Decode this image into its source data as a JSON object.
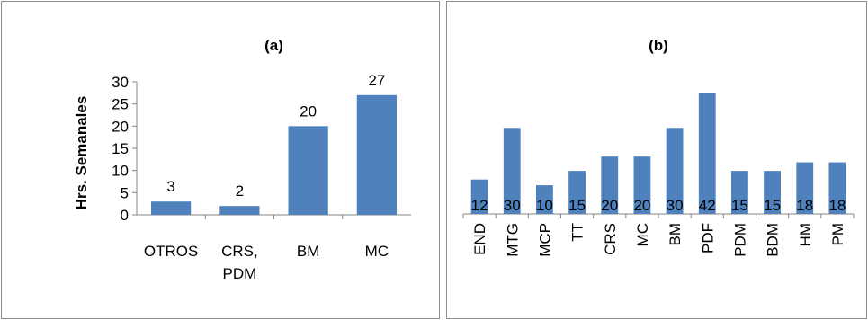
{
  "chart_data": [
    {
      "type": "bar",
      "title": "(a)",
      "ylabel": "Hrs. Semanales",
      "xlabel": "",
      "categories": [
        [
          "OTROS"
        ],
        [
          "CRS,",
          "PDM"
        ],
        [
          "BM"
        ],
        [
          "MC"
        ]
      ],
      "values": [
        3,
        2,
        20,
        27
      ],
      "data_labels": [
        "3",
        "2",
        "20",
        "27"
      ],
      "ylim": [
        0,
        30
      ],
      "yticks": [
        "0",
        "5",
        "10",
        "15",
        "20",
        "25",
        "30"
      ],
      "color": "#4f81bd",
      "grid": false,
      "legend": "none"
    },
    {
      "type": "bar",
      "title": "(b)",
      "xlabel": "",
      "ylabel": "",
      "categories": [
        "END",
        "MTG",
        "MCP",
        "TT",
        "CRS",
        "MC",
        "BM",
        "PDF",
        "PDM",
        "BDM",
        "HM",
        "PM"
      ],
      "values": [
        12,
        30,
        10,
        15,
        20,
        20,
        30,
        42,
        15,
        15,
        18,
        18
      ],
      "data_labels": [
        "12",
        "30",
        "10",
        "15",
        "20",
        "20",
        "30",
        "42",
        "15",
        "15",
        "18",
        "18"
      ],
      "ylim": [
        0,
        42
      ],
      "color": "#4f81bd",
      "grid": false,
      "legend": "none"
    }
  ]
}
